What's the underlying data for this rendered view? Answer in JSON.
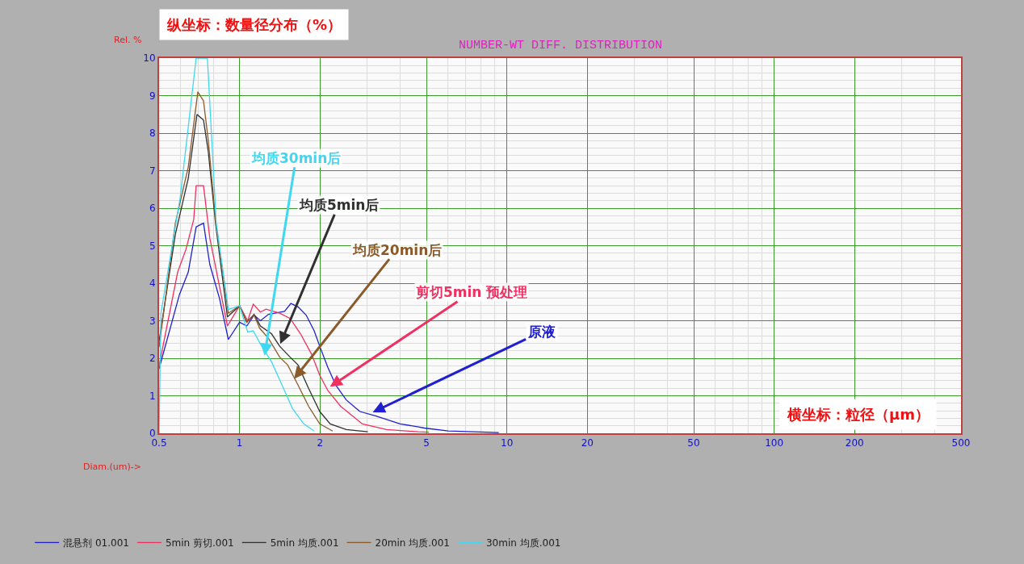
{
  "chart_data": {
    "type": "line",
    "title": "NUMBER-WT DIFF. DISTRIBUTION",
    "xlabel": "Diam.(um)->",
    "ylabel": "Rel. %",
    "log": "x",
    "xlim": [
      0.5,
      500
    ],
    "xticks": [
      0.5,
      1,
      2,
      5,
      10,
      20,
      50,
      100,
      200,
      500
    ],
    "ylim": [
      0,
      10
    ],
    "yticks": [
      0,
      1,
      2,
      3,
      4,
      5,
      6,
      7,
      8,
      9,
      10
    ],
    "grid": true,
    "legend": "bottom left",
    "marker": "none",
    "line_style": "solid",
    "series": [
      {
        "name": "混悬剂 01.001",
        "color": "#2020d0",
        "x": [
          0.5,
          0.596,
          0.643,
          0.688,
          0.733,
          0.774,
          0.841,
          0.908,
          1.0,
          1.064,
          1.133,
          1.197,
          1.283,
          1.473,
          1.556,
          1.656,
          1.775,
          1.902,
          1.995,
          2.139,
          2.292,
          2.507,
          2.82,
          3.24,
          3.99,
          4.67,
          4.91,
          6.04,
          9.33
        ],
        "values": [
          1.72,
          3.7,
          4.3,
          5.5,
          5.6,
          4.5,
          3.6,
          2.5,
          2.96,
          2.86,
          3.15,
          3.0,
          3.17,
          3.25,
          3.46,
          3.37,
          3.15,
          2.73,
          2.32,
          1.76,
          1.28,
          0.89,
          0.58,
          0.46,
          0.25,
          0.17,
          0.14,
          0.06,
          0.02
        ]
      },
      {
        "name": "5min 剪切.001",
        "color": "#f03060",
        "x": [
          0.5,
          0.587,
          0.63,
          0.674,
          0.688,
          0.733,
          0.774,
          0.901,
          1.0,
          1.072,
          1.125,
          1.197,
          1.256,
          1.413,
          1.546,
          1.691,
          1.862,
          1.995,
          2.139,
          2.388,
          2.88,
          3.55,
          4.67,
          5.11
        ],
        "values": [
          1.8,
          4.3,
          4.9,
          5.7,
          6.6,
          6.6,
          5.2,
          2.86,
          3.4,
          3.0,
          3.44,
          3.23,
          3.31,
          3.2,
          3.06,
          2.65,
          2.1,
          1.55,
          1.14,
          0.72,
          0.25,
          0.1,
          0.04,
          0.03
        ]
      },
      {
        "name": "5min 均质.001",
        "color": "#303030",
        "x": [
          0.5,
          0.575,
          0.643,
          0.693,
          0.733,
          0.764,
          0.813,
          0.901,
          1.0,
          1.064,
          1.133,
          1.197,
          1.318,
          1.413,
          1.546,
          1.656,
          1.812,
          1.995,
          2.184,
          2.507,
          3.02
        ],
        "values": [
          2.45,
          5.3,
          6.8,
          8.5,
          8.35,
          7.5,
          5.6,
          3.1,
          3.4,
          2.96,
          3.17,
          2.86,
          2.65,
          2.32,
          2.03,
          1.82,
          1.2,
          0.58,
          0.25,
          0.1,
          0.04
        ]
      },
      {
        "name": "20min 均质.001",
        "color": "#8b5a2b",
        "x": [
          0.5,
          0.575,
          0.643,
          0.698,
          0.733,
          0.764,
          0.813,
          0.908,
          1.0,
          1.064,
          1.133,
          1.189,
          1.283,
          1.413,
          1.514,
          1.656,
          1.812,
          1.995,
          2.23
        ],
        "values": [
          2.3,
          5.6,
          7.1,
          9.1,
          8.86,
          7.8,
          5.7,
          3.2,
          3.4,
          2.96,
          3.15,
          2.8,
          2.53,
          2.03,
          1.82,
          1.28,
          0.72,
          0.25,
          0.06
        ]
      },
      {
        "name": "30min 均质.001",
        "color": "#40d8f0",
        "x": [
          0.5,
          0.508,
          0.6,
          0.688,
          0.758,
          0.818,
          0.908,
          1.0,
          1.072,
          1.125,
          1.197,
          1.318,
          1.443,
          1.578,
          1.738,
          1.902
        ],
        "values": [
          0,
          3.2,
          6.3,
          10,
          10,
          5.6,
          3.3,
          3.4,
          2.7,
          2.73,
          2.38,
          1.9,
          1.28,
          0.66,
          0.25,
          0.06
        ]
      }
    ],
    "annotations": [
      {
        "text": "均质30min后",
        "x": 1.24,
        "y": 2.07
      },
      {
        "text": "均质5min后",
        "x": 1.42,
        "y": 2.38
      },
      {
        "text": "均质20min后",
        "x": 1.6,
        "y": 1.45
      },
      {
        "text": "剪切5min 预处理",
        "x": 2.18,
        "y": 1.24
      },
      {
        "text": "原液",
        "x": 3.15,
        "y": 0.56
      },
      "纵坐标：数量径分布（%）",
      "横坐标：粒径（μm）"
    ]
  }
}
